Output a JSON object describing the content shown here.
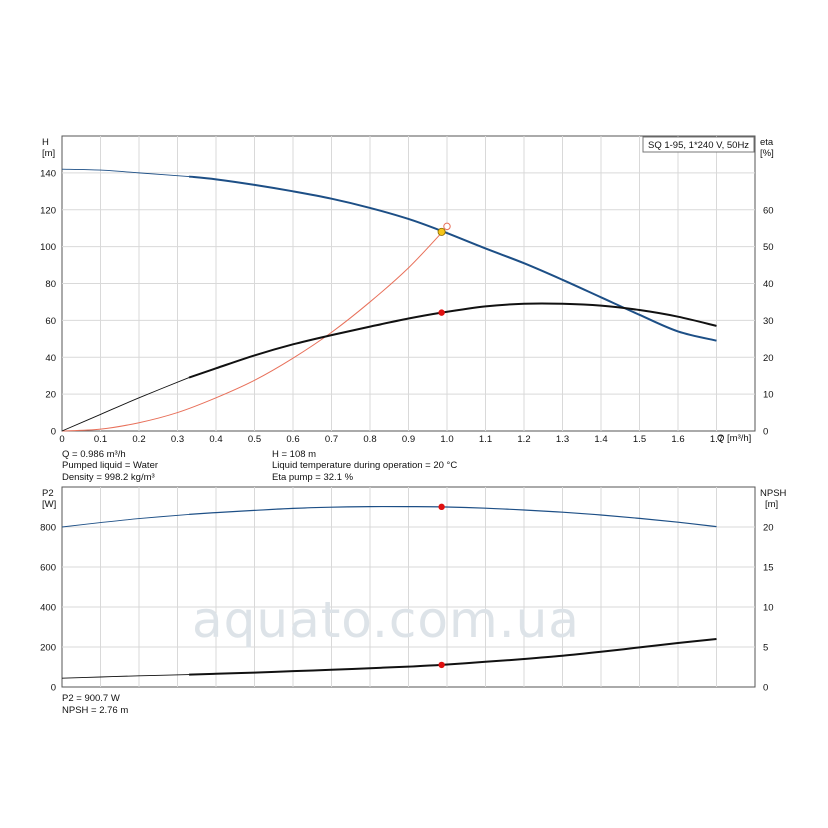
{
  "chart_data": [
    {
      "type": "line",
      "title": "SQ 1-95, 1*240 V, 50Hz",
      "xlabel": "Q [m³/h]",
      "ylabel": [
        "H",
        "[m]"
      ],
      "y2label": [
        "eta",
        "[%]"
      ],
      "xlim": [
        0,
        1.8
      ],
      "ylim": [
        0,
        160
      ],
      "y2lim": [
        0,
        80
      ],
      "grid": true,
      "x_ticks": [
        "0",
        "0.1",
        "0.2",
        "0.3",
        "0.4",
        "0.5",
        "0.6",
        "0.7",
        "0.8",
        "0.9",
        "1.0",
        "1.1",
        "1.2",
        "1.3",
        "1.4",
        "1.5",
        "1.6",
        "1.7"
      ],
      "y_ticks": [
        "0",
        "20",
        "40",
        "60",
        "80",
        "100",
        "120",
        "140"
      ],
      "y2_ticks": [
        "0",
        "10",
        "20",
        "30",
        "40",
        "50",
        "60"
      ],
      "series": [
        {
          "name": "H",
          "axis": "left",
          "color": "#1d4f86",
          "x": [
            0,
            0.1,
            0.2,
            0.33,
            0.4,
            0.5,
            0.6,
            0.7,
            0.8,
            0.9,
            0.986,
            1.1,
            1.2,
            1.3,
            1.4,
            1.5,
            1.6,
            1.7
          ],
          "values": [
            142,
            141.5,
            140,
            138,
            136.5,
            133.5,
            130,
            126,
            121,
            115,
            108.5,
            99,
            91,
            82,
            72.5,
            63,
            54,
            49
          ]
        },
        {
          "name": "eta",
          "axis": "right",
          "color": "#111111",
          "x": [
            0,
            0.1,
            0.2,
            0.33,
            0.4,
            0.5,
            0.6,
            0.7,
            0.8,
            0.9,
            0.986,
            1.1,
            1.2,
            1.3,
            1.4,
            1.5,
            1.6,
            1.7
          ],
          "values": [
            0,
            4.5,
            9,
            14.5,
            17,
            20.5,
            23.5,
            26,
            28.3,
            30.5,
            32.1,
            33.8,
            34.5,
            34.5,
            34,
            32.8,
            31,
            28.5
          ]
        },
        {
          "name": "system",
          "axis": "left",
          "color": "#e8705a",
          "x": [
            0,
            0.1,
            0.2,
            0.3,
            0.4,
            0.5,
            0.6,
            0.7,
            0.8,
            0.9,
            0.986
          ],
          "values": [
            0,
            1,
            4.5,
            10,
            18,
            27.5,
            39.5,
            53.5,
            70,
            88.5,
            107.5
          ]
        }
      ],
      "duty_point": {
        "Q": 0.986,
        "H": 108,
        "eta": 32.1
      },
      "info": [
        "Q = 0.986 m³/h",
        "Pumped liquid = Water",
        "Density = 998.2 kg/m³",
        "H = 108 m",
        "Liquid temperature during operation = 20 °C",
        "Eta pump = 32.1 %"
      ]
    },
    {
      "type": "line",
      "ylabel": [
        "P2",
        "[W]"
      ],
      "y2label": [
        "NPSH",
        "[m]"
      ],
      "xlim": [
        0,
        1.8
      ],
      "ylim": [
        0,
        1000
      ],
      "y2lim": [
        0,
        25
      ],
      "grid": true,
      "y_ticks": [
        "0",
        "200",
        "400",
        "600",
        "800"
      ],
      "y2_ticks": [
        "0",
        "5",
        "10",
        "15",
        "20"
      ],
      "series": [
        {
          "name": "P2",
          "axis": "left",
          "color": "#1d4f86",
          "x": [
            0,
            0.1,
            0.2,
            0.33,
            0.4,
            0.5,
            0.6,
            0.7,
            0.8,
            0.9,
            0.986,
            1.1,
            1.2,
            1.3,
            1.4,
            1.5,
            1.6,
            1.7
          ],
          "values": [
            800,
            822,
            842,
            863,
            872,
            883,
            893,
            899,
            902,
            902,
            900.7,
            894,
            885,
            874,
            860,
            843,
            824,
            802
          ]
        },
        {
          "name": "NPSH",
          "axis": "right",
          "color": "#111111",
          "x": [
            0,
            0.1,
            0.2,
            0.33,
            0.4,
            0.5,
            0.6,
            0.7,
            0.8,
            0.9,
            0.986,
            1.1,
            1.2,
            1.3,
            1.4,
            1.5,
            1.6,
            1.7
          ],
          "values": [
            1.1,
            1.25,
            1.4,
            1.55,
            1.65,
            1.8,
            1.98,
            2.15,
            2.35,
            2.55,
            2.76,
            3.15,
            3.5,
            3.9,
            4.4,
            4.95,
            5.5,
            6.0
          ]
        }
      ],
      "duty_point": {
        "Q": 0.986,
        "P2": 900.7,
        "NPSH": 2.76
      },
      "info": [
        "P2 = 900.7 W",
        "NPSH = 2.76 m"
      ]
    }
  ],
  "watermark": "aquato.com.ua",
  "colors": {
    "h_curve": "#1d4f86",
    "eta_curve": "#111111",
    "system_curve": "#e8705a",
    "duty_marker": "#e01010",
    "operating_point": "#f5c518"
  }
}
